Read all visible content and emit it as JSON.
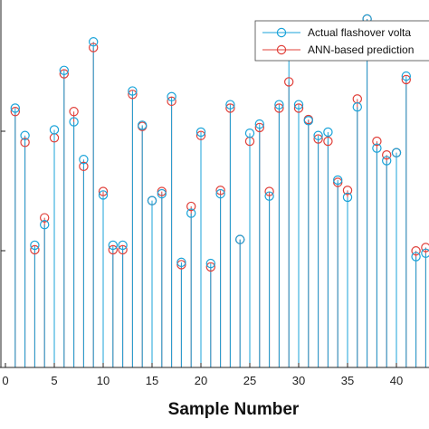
{
  "chart_data": {
    "type": "stem",
    "title": "",
    "xlabel": "Sample Number",
    "ylabel": "",
    "xlim": [
      0,
      43.5
    ],
    "ylim": [
      0,
      3.05
    ],
    "x_ticks": [
      0,
      5,
      10,
      15,
      20,
      25,
      30,
      35,
      40
    ],
    "grid": false,
    "legend_position": "top-right",
    "x": [
      1,
      2,
      3,
      4,
      5,
      6,
      7,
      8,
      9,
      10,
      11,
      12,
      13,
      14,
      15,
      16,
      17,
      18,
      19,
      20,
      21,
      22,
      23,
      24,
      25,
      26,
      27,
      28,
      29,
      30,
      31,
      32,
      33,
      34,
      35,
      36,
      37,
      38,
      39,
      40,
      41,
      42,
      43
    ],
    "series": [
      {
        "name": "Actual flashover volta",
        "color": "#1aa3d9",
        "values": [
          2.27,
          2.03,
          1.07,
          1.25,
          2.08,
          2.6,
          2.15,
          1.82,
          2.85,
          1.51,
          1.07,
          1.07,
          2.42,
          2.12,
          1.46,
          1.52,
          2.37,
          0.92,
          1.35,
          2.06,
          0.91,
          1.52,
          2.3,
          1.12,
          2.05,
          2.13,
          1.5,
          2.3,
          2.85,
          2.3,
          2.16,
          2.03,
          2.06,
          1.64,
          1.49,
          2.28,
          3.05,
          1.92,
          1.81,
          1.88,
          2.55,
          0.97,
          1.0
        ]
      },
      {
        "name": "ANN-based prediction",
        "color": "#e0403a",
        "values": [
          2.24,
          1.97,
          1.03,
          1.31,
          2.01,
          2.57,
          2.24,
          1.76,
          2.8,
          1.54,
          1.03,
          1.03,
          2.39,
          2.11,
          1.46,
          1.54,
          2.33,
          0.9,
          1.41,
          2.03,
          0.88,
          1.55,
          2.27,
          1.12,
          1.98,
          2.1,
          1.54,
          2.27,
          2.5,
          2.27,
          2.17,
          2.0,
          1.98,
          1.62,
          1.55,
          2.35,
          3.05,
          1.98,
          1.86,
          1.88,
          2.52,
          1.02,
          1.05
        ]
      }
    ]
  }
}
